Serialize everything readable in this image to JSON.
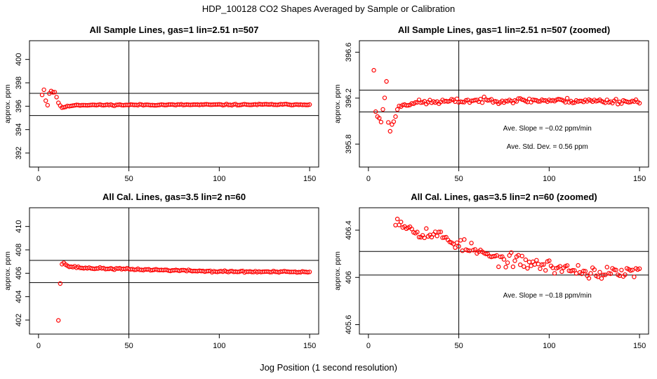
{
  "figure": {
    "title": "HDP_100128  CO2 Shapes Averaged by Sample or Calibration",
    "xlabel": "Jog Position (1 second resolution)"
  },
  "colors": {
    "points": "#ff0000",
    "axes": "#000000",
    "background": "#ffffff"
  },
  "chart_data": [
    {
      "type": "scatter",
      "title": "All Sample Lines, gas=1 lin=2.51 n=507",
      "ylabel": "approx. ppm",
      "xlim": [
        -5,
        155
      ],
      "ylim": [
        390.8,
        401.6
      ],
      "xticks": [
        0,
        50,
        100,
        150
      ],
      "yticks": [
        392,
        394,
        396,
        398,
        400
      ],
      "hlines": [
        397.1,
        395.2
      ],
      "vlines": [
        50
      ],
      "annotations": [],
      "series": [
        {
          "gen": {
            "x_start": 2,
            "x_end": 150,
            "x_step": 1,
            "segments": [
              [
                2,
                397.0
              ],
              [
                3,
                397.4
              ],
              [
                4,
                396.5
              ],
              [
                5,
                396.1
              ],
              [
                6,
                397.1
              ],
              [
                7,
                397.3
              ],
              [
                8,
                397.2
              ],
              [
                9,
                397.2
              ],
              [
                10,
                396.8
              ],
              [
                11,
                396.3
              ],
              [
                12,
                396.0
              ],
              [
                13,
                395.9
              ],
              [
                15,
                395.95
              ],
              [
                20,
                396.1
              ],
              [
                150,
                396.15
              ]
            ],
            "noise": 0.05,
            "seed": 11
          }
        }
      ]
    },
    {
      "type": "scatter",
      "title": "All Sample Lines, gas=1 lin=2.51 n=507 (zoomed)",
      "ylabel": "approx. ppm",
      "xlim": [
        -5,
        155
      ],
      "ylim": [
        395.6,
        396.7
      ],
      "xticks": [
        0,
        50,
        100,
        150
      ],
      "yticks": [
        395.8,
        396.2,
        396.6
      ],
      "hlines": [
        396.27,
        396.08
      ],
      "vlines": [
        50
      ],
      "annotations": [
        "Ave. Slope =  −0.02  ppm/min",
        "Ave. Std. Dev. =  0.56  ppm"
      ],
      "series": [
        {
          "gen": {
            "x_start": 3,
            "x_end": 150,
            "x_step": 1,
            "segments": [
              [
                3,
                396.45
              ],
              [
                4,
                396.07
              ],
              [
                7,
                396.0
              ],
              [
                10,
                396.33
              ],
              [
                11,
                395.98
              ],
              [
                12,
                395.93
              ],
              [
                13,
                395.96
              ],
              [
                14,
                396.0
              ],
              [
                16,
                396.1
              ],
              [
                18,
                396.14
              ],
              [
                25,
                396.16
              ],
              [
                60,
                396.18
              ],
              [
                100,
                396.18
              ],
              [
                150,
                396.17
              ]
            ],
            "noise": 0.022,
            "seed": 23
          }
        }
      ]
    },
    {
      "type": "scatter",
      "title": "All Cal. Lines, gas=3.5 lin=2 n=60",
      "ylabel": "approx. ppm",
      "xlim": [
        -5,
        155
      ],
      "ylim": [
        400.8,
        411.6
      ],
      "xticks": [
        0,
        50,
        100,
        150
      ],
      "yticks": [
        402,
        404,
        406,
        408,
        410
      ],
      "hlines": [
        407.1,
        405.2
      ],
      "vlines": [
        50
      ],
      "annotations": [],
      "series": [
        {
          "gen": {
            "x_start": 11,
            "x_end": 150,
            "x_step": 1,
            "segments": [
              [
                11,
                402.0
              ],
              [
                12,
                405.2
              ],
              [
                13,
                406.8
              ],
              [
                14,
                406.9
              ],
              [
                16,
                406.6
              ],
              [
                25,
                406.45
              ],
              [
                50,
                406.35
              ],
              [
                100,
                406.15
              ],
              [
                150,
                406.1
              ]
            ],
            "noise": 0.07,
            "seed": 37
          }
        }
      ]
    },
    {
      "type": "scatter",
      "title": "All Cal. Lines, gas=3.5 lin=2 n=60 (zoomed)",
      "ylabel": "approx. ppm",
      "xlim": [
        -5,
        155
      ],
      "ylim": [
        405.52,
        406.59
      ],
      "xticks": [
        0,
        50,
        100,
        150
      ],
      "yticks": [
        405.6,
        406.0,
        406.4
      ],
      "hlines": [
        406.22,
        406.02
      ],
      "vlines": [
        50
      ],
      "annotations": [
        "Ave. Slope =  −0.18  ppm/min"
      ],
      "series": [
        {
          "gen": {
            "x_start": 15,
            "x_end": 150,
            "x_step": 1,
            "segments": [
              [
                15,
                406.5
              ],
              [
                25,
                406.4
              ],
              [
                40,
                406.35
              ],
              [
                55,
                406.25
              ],
              [
                70,
                406.16
              ],
              [
                90,
                406.12
              ],
              [
                110,
                406.07
              ],
              [
                130,
                406.03
              ],
              [
                150,
                406.05
              ]
            ],
            "noise": 0.055,
            "seed": 53
          }
        }
      ]
    }
  ]
}
